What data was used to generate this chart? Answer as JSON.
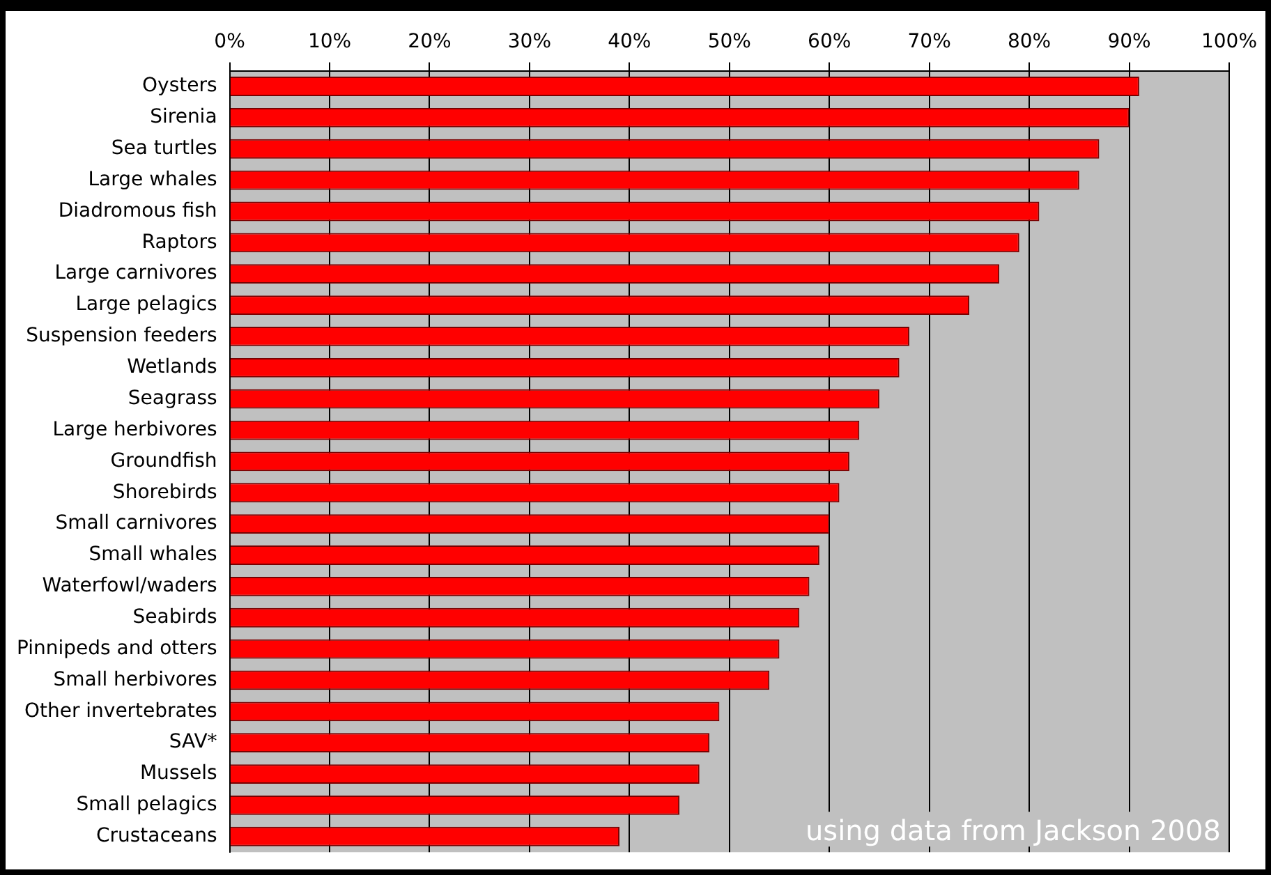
{
  "chart_data": {
    "type": "bar",
    "orientation": "horizontal",
    "categories": [
      "Oysters",
      "Sirenia",
      "Sea turtles",
      "Large whales",
      "Diadromous fish",
      "Raptors",
      "Large carnivores",
      "Large pelagics",
      "Suspension feeders",
      "Wetlands",
      "Seagrass",
      "Large herbivores",
      "Groundfish",
      "Shorebirds",
      "Small carnivores",
      "Small whales",
      "Waterfowl/waders",
      "Seabirds",
      "Pinnipeds and otters",
      "Small herbivores",
      "Other invertebrates",
      "SAV*",
      "Mussels",
      "Small pelagics",
      "Crustaceans"
    ],
    "values": [
      91,
      90,
      87,
      85,
      81,
      79,
      77,
      74,
      68,
      67,
      65,
      63,
      62,
      61,
      60,
      59,
      58,
      57,
      55,
      54,
      49,
      48,
      47,
      45,
      39
    ],
    "color": "#ff0000",
    "xlim": [
      0,
      100
    ],
    "xticks": [
      {
        "value": 0,
        "label": "0%"
      },
      {
        "value": 10,
        "label": "10%"
      },
      {
        "value": 20,
        "label": "20%"
      },
      {
        "value": 30,
        "label": "30%"
      },
      {
        "value": 40,
        "label": "40%"
      },
      {
        "value": 50,
        "label": "50%"
      },
      {
        "value": 60,
        "label": "60%"
      },
      {
        "value": 70,
        "label": "70%"
      },
      {
        "value": 80,
        "label": "80%"
      },
      {
        "value": 90,
        "label": "90%"
      },
      {
        "value": 100,
        "label": "100%"
      }
    ],
    "grid": "x",
    "annotations": [
      "using data from Jackson 2008"
    ]
  }
}
